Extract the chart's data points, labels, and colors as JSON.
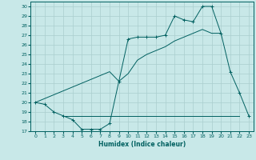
{
  "background_color": "#c8e8e8",
  "line_color": "#006060",
  "grid_color": "#aacece",
  "xlabel": "Humidex (Indice chaleur)",
  "xlim": [
    -0.5,
    23.5
  ],
  "ylim": [
    17.0,
    30.5
  ],
  "yticks": [
    17,
    18,
    19,
    20,
    21,
    22,
    23,
    24,
    25,
    26,
    27,
    28,
    29,
    30
  ],
  "xticks": [
    0,
    1,
    2,
    3,
    4,
    5,
    6,
    7,
    8,
    9,
    10,
    11,
    12,
    13,
    14,
    15,
    16,
    17,
    18,
    19,
    20,
    21,
    22,
    23
  ],
  "curve1_x": [
    0,
    1,
    2,
    3,
    4,
    5,
    6,
    7,
    8,
    9,
    10,
    11,
    12,
    13,
    14,
    15,
    16,
    17,
    18,
    19,
    20,
    21,
    22,
    23
  ],
  "curve1_y": [
    20.0,
    19.8,
    19.0,
    18.6,
    18.2,
    17.2,
    17.2,
    17.2,
    17.8,
    22.2,
    26.6,
    26.8,
    26.8,
    26.8,
    27.0,
    29.0,
    28.6,
    28.4,
    30.0,
    30.0,
    27.2,
    23.2,
    21.0,
    18.6
  ],
  "curve2_x": [
    0,
    1,
    2,
    3,
    4,
    5,
    6,
    7,
    8,
    9,
    10,
    11,
    12,
    13,
    14,
    15,
    16,
    17,
    18,
    19,
    20
  ],
  "curve2_y": [
    20.0,
    20.4,
    20.8,
    21.2,
    21.6,
    22.0,
    22.4,
    22.8,
    23.2,
    22.2,
    23.0,
    24.4,
    25.0,
    25.4,
    25.8,
    26.4,
    26.8,
    27.2,
    27.6,
    27.2,
    27.2
  ],
  "hline_x": [
    3,
    22
  ],
  "hline_y": [
    18.6,
    18.6
  ]
}
